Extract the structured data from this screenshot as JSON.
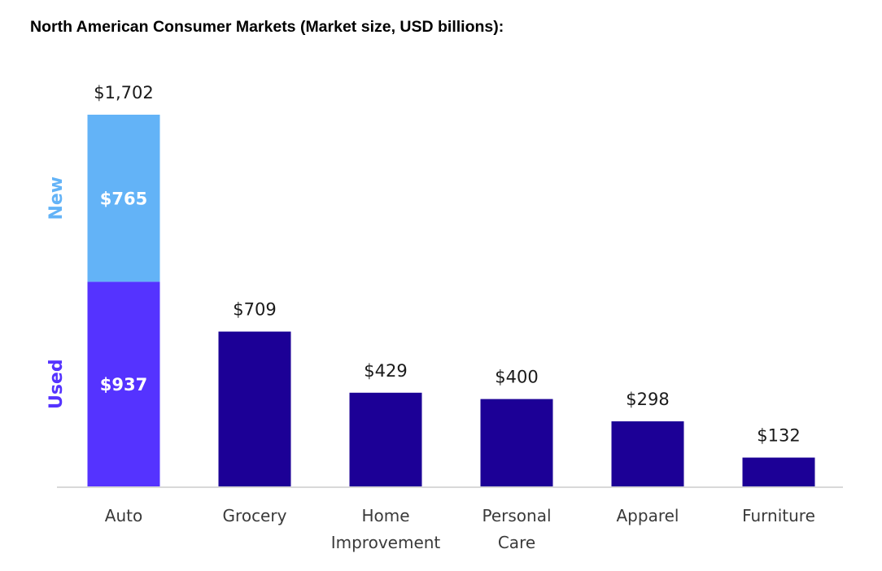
{
  "chart_data": {
    "type": "bar",
    "title": "North American Consumer Markets (Market size, USD billions):",
    "xlabel": "",
    "ylabel": "",
    "ylim": [
      0,
      1702
    ],
    "grid": false,
    "categories": [
      "Auto",
      "Grocery",
      "Home Improvement",
      "Personal Care",
      "Apparel",
      "Furniture"
    ],
    "values": [
      1702,
      709,
      429,
      400,
      298,
      132
    ],
    "value_labels": [
      "$1,702",
      "$709",
      "$429",
      "$400",
      "$298",
      "$132"
    ],
    "stacked_auto": {
      "category": "Auto",
      "segments": [
        {
          "name": "Used",
          "value": 937,
          "label": "$937",
          "color": "#5533ff"
        },
        {
          "name": "New",
          "value": 765,
          "label": "$765",
          "color": "#63b3f7"
        }
      ]
    },
    "colors": {
      "bar": "#1c0096",
      "axis": "#d9d9d9"
    }
  }
}
